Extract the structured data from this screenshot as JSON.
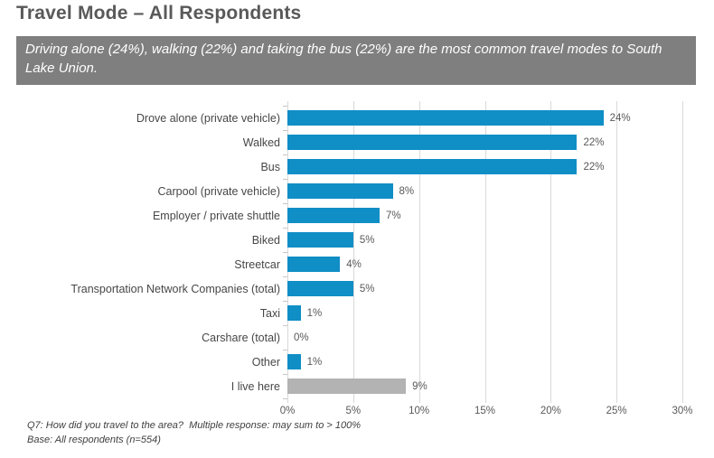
{
  "header": {
    "title": "Travel Mode – All Respondents",
    "subtitle": "Driving alone (24%), walking (22%) and taking the bus (22%) are the most common travel modes to South Lake Union."
  },
  "chart_data": {
    "type": "bar",
    "orientation": "horizontal",
    "categories": [
      "Drove alone (private vehicle)",
      "Walked",
      "Bus",
      "Carpool (private vehicle)",
      "Employer / private shuttle",
      "Biked",
      "Streetcar",
      "Transportation Network Companies (total)",
      "Taxi",
      "Carshare (total)",
      "Other",
      "I live here"
    ],
    "values": [
      24,
      22,
      22,
      8,
      7,
      5,
      4,
      5,
      1,
      0,
      1,
      9
    ],
    "data_labels": [
      "24%",
      "22%",
      "22%",
      "8%",
      "7%",
      "5%",
      "4%",
      "5%",
      "1%",
      "0%",
      "1%",
      "9%"
    ],
    "xlim": [
      0,
      30
    ],
    "x_tick_step": 5,
    "x_tick_labels": [
      "0%",
      "5%",
      "10%",
      "15%",
      "20%",
      "25%",
      "30%"
    ],
    "grid": true,
    "legend": "none",
    "bar_color": "#108ec6",
    "highlight_category": "I live here",
    "highlight_color": "#b3b3b3"
  },
  "footnote": {
    "line1": "Q7: How did you travel to the area?  Multiple response: may sum to > 100%",
    "line2": "Base: All respondents (n=554)"
  },
  "colors": {
    "title_text": "#595959",
    "banner_background": "#7f7f7f",
    "banner_text": "#ffffff",
    "gridline": "#d9d9d9",
    "axis_text": "#595959",
    "category_text": "#474747",
    "footnote_text": "#3f3f3f"
  }
}
